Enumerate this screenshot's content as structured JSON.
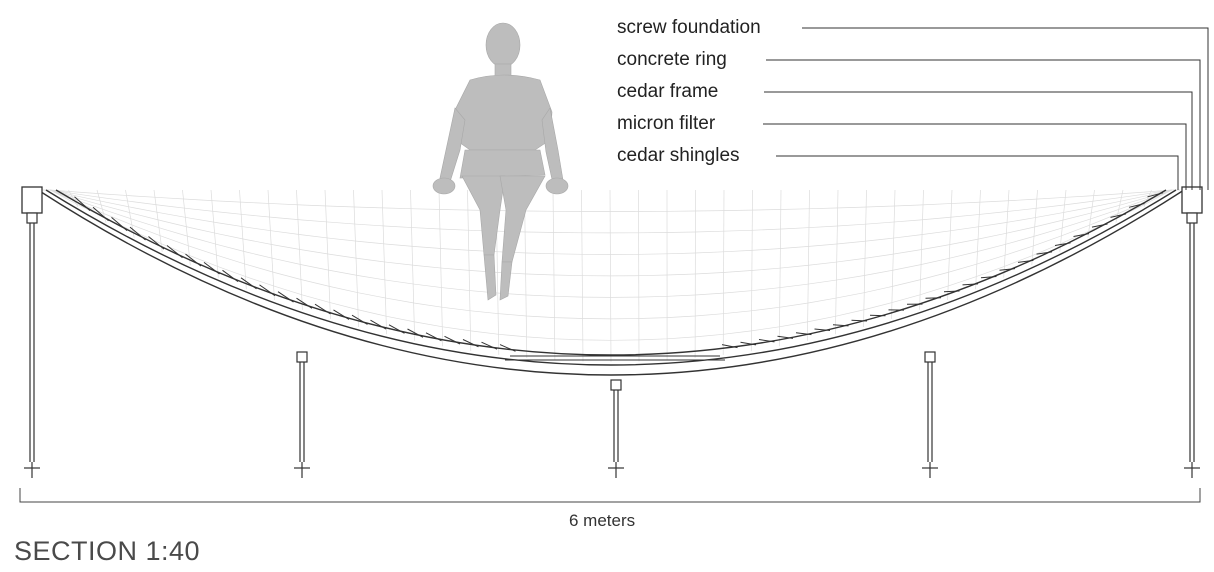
{
  "callouts": [
    {
      "key": "screw_foundation",
      "label": "screw foundation"
    },
    {
      "key": "concrete_ring",
      "label": "concrete ring"
    },
    {
      "key": "cedar_frame",
      "label": "cedar frame"
    },
    {
      "key": "micron_filter",
      "label": "micron filter"
    },
    {
      "key": "cedar_shingles",
      "label": "cedar shingles"
    }
  ],
  "dimension": {
    "label": "6 meters"
  },
  "title": "SECTION 1:40",
  "colors": {
    "line": "#333333",
    "grid": "#d8d8d8",
    "figure": "#b9b9b9",
    "title": "#4a4a4a"
  }
}
